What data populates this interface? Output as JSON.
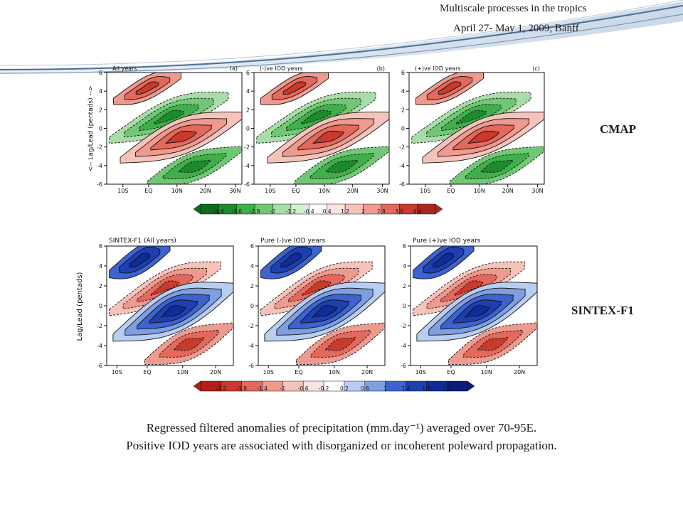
{
  "header": {
    "line1": "Multiscale processes in the tropics",
    "line2": "April 27- May 1, 2009, Banff"
  },
  "rows": {
    "cmap_label": "CMAP",
    "sintex_label": "SINTEX-F1"
  },
  "cmap": {
    "ylabel": "<-- Lag/Lead (pentads) -->",
    "yticks": [
      "6",
      "4",
      "2",
      "0",
      "-2",
      "-4",
      "-6"
    ],
    "xticks": [
      "10S",
      "EQ",
      "10N",
      "20N",
      "30N"
    ],
    "panels": [
      {
        "title": "All years",
        "tag": "(a)"
      },
      {
        "title": "(-)ve IOD years",
        "tag": "(b)"
      },
      {
        "title": "(+)ve IOD years",
        "tag": "(c)"
      }
    ],
    "colorbar": [
      "-4.4",
      "-3.6",
      "-2.8",
      "-2",
      "-1.2",
      "-0.4",
      "0.4",
      "1.2",
      "2",
      "2.8",
      "3.6",
      "4.4"
    ]
  },
  "sintex": {
    "ylabel": "Lag/Lead (pentads)",
    "yticks": [
      "6",
      "4",
      "2",
      "0",
      "-2",
      "-4",
      "-6"
    ],
    "xticks": [
      "10S",
      "EQ",
      "10N",
      "20N"
    ],
    "panels": [
      {
        "title": "SINTEX-F1 (All years)"
      },
      {
        "title": "Pure (-)ve IOD years"
      },
      {
        "title": "Pure (+)ve IOD years"
      }
    ],
    "colorbar": [
      "-2.2",
      "-1.8",
      "-1.4",
      "-1",
      "-0.6",
      "-0.2",
      "0.2",
      "0.6",
      "1",
      "1.4",
      "1.8",
      "2.2"
    ]
  },
  "colors": {
    "cmap_neg": "#2e9a3a",
    "cmap_pos": "#e8574a",
    "sintex_neg": "#e8574a",
    "sintex_pos": "#1d3fb0"
  },
  "caption": {
    "line1": "Regressed filtered anomalies of precipitation (mm.day⁻¹) averaged over 70-95E.",
    "line2": "Positive IOD years are associated with disorganized or incoherent poleward propagation."
  }
}
